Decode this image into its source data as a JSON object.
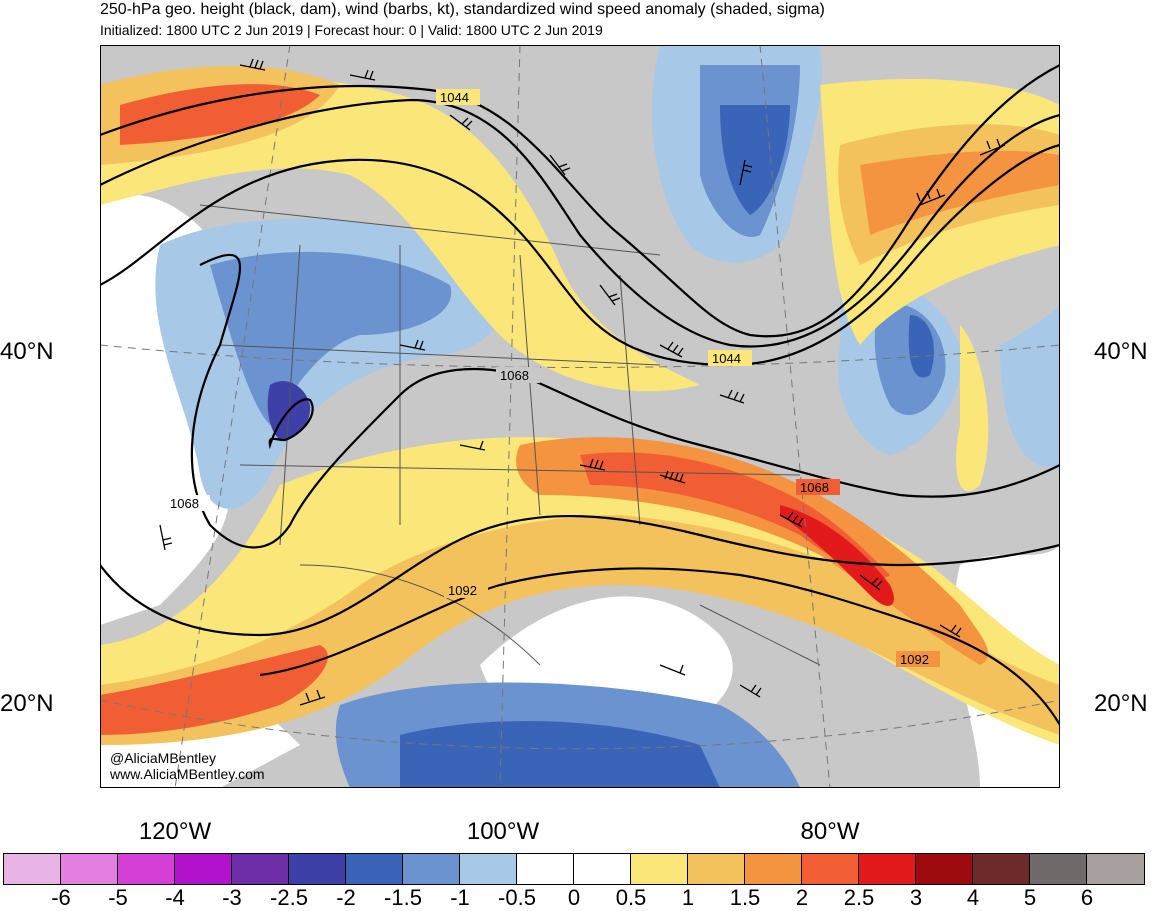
{
  "header": {
    "title": "250-hPa geo. height (black, dam), wind (barbs, kt), standardized wind speed anomaly (shaded, sigma)",
    "subtitle": "Initialized: 1800 UTC 2 Jun 2019 | Forecast hour: 0 | Valid: 1800 UTC 2 Jun 2019"
  },
  "axes": {
    "lat_left": [
      "40°N",
      "20°N"
    ],
    "lat_right": [
      "40°N",
      "20°N"
    ],
    "lon": [
      "120°W",
      "100°W",
      "80°W"
    ]
  },
  "contour_labels": [
    "1044",
    "1044",
    "1068",
    "1068",
    "1068",
    "1092",
    "1092"
  ],
  "credit": {
    "handle": "@AliciaMBentley",
    "site": "www.AliciaMBentley.com"
  },
  "colorbar": {
    "colors": [
      "#e8b4e6",
      "#e27fe0",
      "#d63fd6",
      "#b312cc",
      "#6e2ea8",
      "#3f3fa8",
      "#3a64b8",
      "#6a93d0",
      "#a7c8e6",
      "#ffffff",
      "#ffffff",
      "#fbe67a",
      "#f4c25c",
      "#f49440",
      "#f25e34",
      "#e31a1c",
      "#9e0b0e",
      "#6e2a2a",
      "#716a6a",
      "#a89f9f"
    ],
    "labels": [
      "-6",
      "-5",
      "-4",
      "-3",
      "-2.5",
      "-2",
      "-1.5",
      "-1",
      "-0.5",
      "0",
      "0.5",
      "1",
      "1.5",
      "2",
      "2.5",
      "3",
      "4",
      "5",
      "6"
    ]
  },
  "map_colors": {
    "ocean_background": "#ffffff",
    "neutral_gray": "#c8c8c8",
    "contour_line": "#000000",
    "border_line": "#555555"
  }
}
